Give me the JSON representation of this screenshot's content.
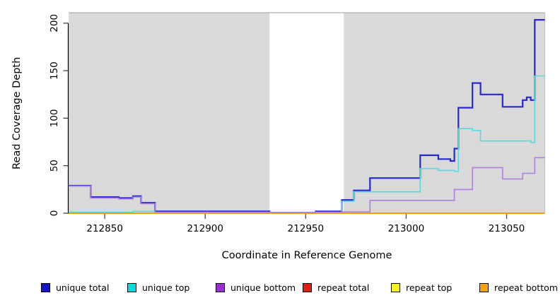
{
  "chart_data": {
    "type": "line",
    "interpolation": "step-after",
    "title": "",
    "xlabel": "Coordinate in Reference Genome",
    "ylabel": "Read Coverage Depth",
    "xlim": [
      212832,
      213069
    ],
    "ylim": [
      0,
      211
    ],
    "x_ticks": [
      212850,
      212900,
      212950,
      213000,
      213050
    ],
    "y_ticks": [
      0,
      50,
      100,
      150,
      200
    ],
    "grid": false,
    "plot_background": "#d9d9d9",
    "masked_region": {
      "x_start": 212932,
      "x_end": 212969,
      "color": "#ffffff"
    },
    "series": [
      {
        "name": "unique total",
        "color": "#2727d4",
        "line_width": 2.2,
        "points": [
          [
            212832,
            29
          ],
          [
            212843,
            17
          ],
          [
            212857,
            16
          ],
          [
            212864,
            18
          ],
          [
            212868,
            11
          ],
          [
            212875,
            2
          ],
          [
            212932,
            0.5
          ],
          [
            212955,
            2
          ],
          [
            212968,
            14
          ],
          [
            212974,
            24
          ],
          [
            212982,
            37
          ],
          [
            213007,
            61
          ],
          [
            213016,
            57
          ],
          [
            213022,
            55
          ],
          [
            213024,
            68
          ],
          [
            213026,
            111
          ],
          [
            213033,
            137
          ],
          [
            213037,
            125
          ],
          [
            213048,
            112
          ],
          [
            213058,
            119
          ],
          [
            213060,
            122
          ],
          [
            213062,
            119
          ],
          [
            213064,
            203.5
          ],
          [
            213069,
            203.5
          ]
        ]
      },
      {
        "name": "unique top",
        "color": "#5cd8e0",
        "line_width": 1.6,
        "points": [
          [
            212832,
            1
          ],
          [
            212864,
            2
          ],
          [
            212875,
            1
          ],
          [
            212932,
            0.3
          ],
          [
            212955,
            1
          ],
          [
            212968,
            12.5
          ],
          [
            212974,
            22.5
          ],
          [
            213007,
            47
          ],
          [
            213016,
            45
          ],
          [
            213024,
            44
          ],
          [
            213026,
            89
          ],
          [
            213033,
            87
          ],
          [
            213037,
            76
          ],
          [
            213062,
            74.5
          ],
          [
            213064,
            144.5
          ],
          [
            213069,
            144.5
          ]
        ]
      },
      {
        "name": "unique bottom",
        "color": "#b07ee0",
        "line_width": 1.6,
        "points": [
          [
            212832,
            28.5
          ],
          [
            212843,
            16
          ],
          [
            212857,
            15
          ],
          [
            212864,
            17
          ],
          [
            212868,
            10
          ],
          [
            212875,
            1
          ],
          [
            212932,
            0.2
          ],
          [
            212955,
            1
          ],
          [
            212968,
            1.5
          ],
          [
            212982,
            13.5
          ],
          [
            213024,
            25
          ],
          [
            213033,
            48
          ],
          [
            213048,
            36
          ],
          [
            213058,
            42
          ],
          [
            213064,
            58.5
          ],
          [
            213069,
            58.5
          ]
        ]
      },
      {
        "name": "repeat total",
        "color": "#dd1100",
        "line_width": 1.4,
        "points": [
          [
            212832,
            0
          ],
          [
            213069,
            0
          ]
        ]
      },
      {
        "name": "repeat top",
        "color": "#f5f511",
        "line_width": 1.4,
        "points": [
          [
            212832,
            0
          ],
          [
            213069,
            0
          ]
        ]
      },
      {
        "name": "repeat bottom",
        "color": "#f79d0a",
        "line_width": 2,
        "points": [
          [
            212832,
            0
          ],
          [
            213069,
            0
          ]
        ]
      }
    ],
    "legend_position": "bottom",
    "legend": [
      {
        "label": "unique total",
        "swatch_color": "#1414cc"
      },
      {
        "label": "unique top",
        "swatch_color": "#00dede"
      },
      {
        "label": "unique bottom",
        "swatch_color": "#9b30d0"
      },
      {
        "label": "repeat total",
        "swatch_color": "#e02010"
      },
      {
        "label": "repeat top",
        "swatch_color": "#f8f820"
      },
      {
        "label": "repeat bottom",
        "swatch_color": "#f7a10c"
      }
    ]
  }
}
